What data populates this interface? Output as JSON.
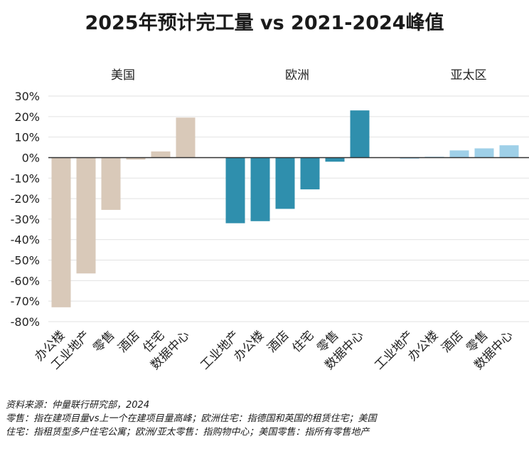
{
  "chart_data": {
    "type": "bar",
    "title": "2025年预计完工量 vs 2021-2024峰值",
    "xlabel": "",
    "ylabel": "",
    "ylim": [
      -80,
      30
    ],
    "yticks": [
      30,
      20,
      10,
      0,
      -10,
      -20,
      -30,
      -40,
      -50,
      -60,
      -70,
      -80
    ],
    "ytick_labels": [
      "30%",
      "20%",
      "10%",
      "0%",
      "-10%",
      "-20%",
      "-30%",
      "-40%",
      "-50%",
      "-60%",
      "-70%",
      "-80%"
    ],
    "grid": true,
    "groups": [
      {
        "name": "美国",
        "color": "#d9c9b9",
        "categories": [
          "办公楼",
          "工业地产",
          "零售",
          "酒店",
          "住宅",
          "数据中心"
        ],
        "values": [
          -73,
          -56.5,
          -25.5,
          -1,
          3,
          19.5
        ]
      },
      {
        "name": "欧洲",
        "color": "#2f8fad",
        "categories": [
          "工业地产",
          "办公楼",
          "酒店",
          "住宅",
          "零售",
          "数据中心"
        ],
        "values": [
          -32,
          -31,
          -25,
          -15.5,
          -2,
          23
        ]
      },
      {
        "name": "亚太区",
        "color": "#9fd0e8",
        "categories": [
          "工业地产",
          "办公楼",
          "酒店",
          "零售",
          "数据中心"
        ],
        "values": [
          -0.3,
          0.4,
          3.5,
          4.5,
          6
        ]
      }
    ]
  },
  "notes": {
    "source": "资料来源：仲量联行研究部，2024",
    "line1": "零售：指在建项目量vs上一个在建项目量高峰；欧洲住宅：指德国和英国的租赁住宅；美国",
    "line2": "住宅：指租赁型多户住宅公寓；欧洲/亚太零售：指购物中心；美国零售：指所有零售地产"
  }
}
